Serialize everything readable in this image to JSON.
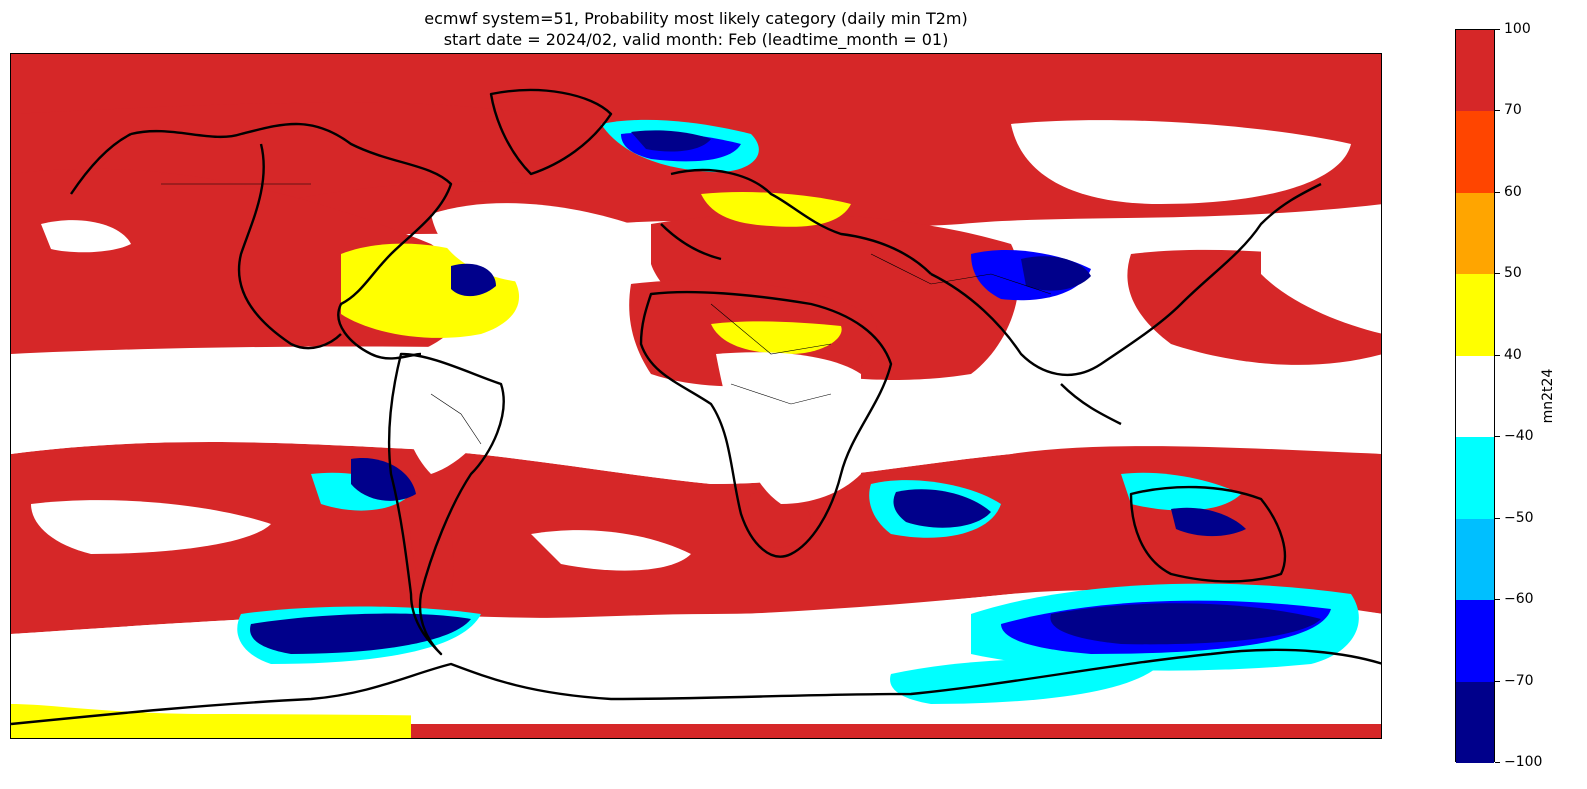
{
  "title": {
    "line1": "ecmwf system=51, Probability most likely category (daily min T2m)",
    "line2": "start date = 2024/02, valid month: Feb (leadtime_month = 01)"
  },
  "colorbar": {
    "label": "mn2t24",
    "ticks": [
      "100",
      "70",
      "60",
      "50",
      "40",
      "−40",
      "−50",
      "−60",
      "−70",
      "−100"
    ],
    "segments": [
      {
        "from": 70,
        "to": 100,
        "color": "#d62728"
      },
      {
        "from": 60,
        "to": 70,
        "color": "#ff4500"
      },
      {
        "from": 50,
        "to": 60,
        "color": "#ffa500"
      },
      {
        "from": 40,
        "to": 50,
        "color": "#ffff00"
      },
      {
        "from": -40,
        "to": 40,
        "color": "#ffffff"
      },
      {
        "from": -50,
        "to": -40,
        "color": "#00ffff"
      },
      {
        "from": -60,
        "to": -50,
        "color": "#00bfff"
      },
      {
        "from": -70,
        "to": -60,
        "color": "#0000ff"
      },
      {
        "from": -100,
        "to": -70,
        "color": "#00008b"
      }
    ]
  },
  "map": {
    "projection": "global equirectangular",
    "colors": {
      "red": "#d62728",
      "orange": "#ffa500",
      "yellow": "#ffff00",
      "cyan": "#00ffff",
      "blue": "#0000ff",
      "navy": "#00008b",
      "coast": "#000000"
    }
  }
}
